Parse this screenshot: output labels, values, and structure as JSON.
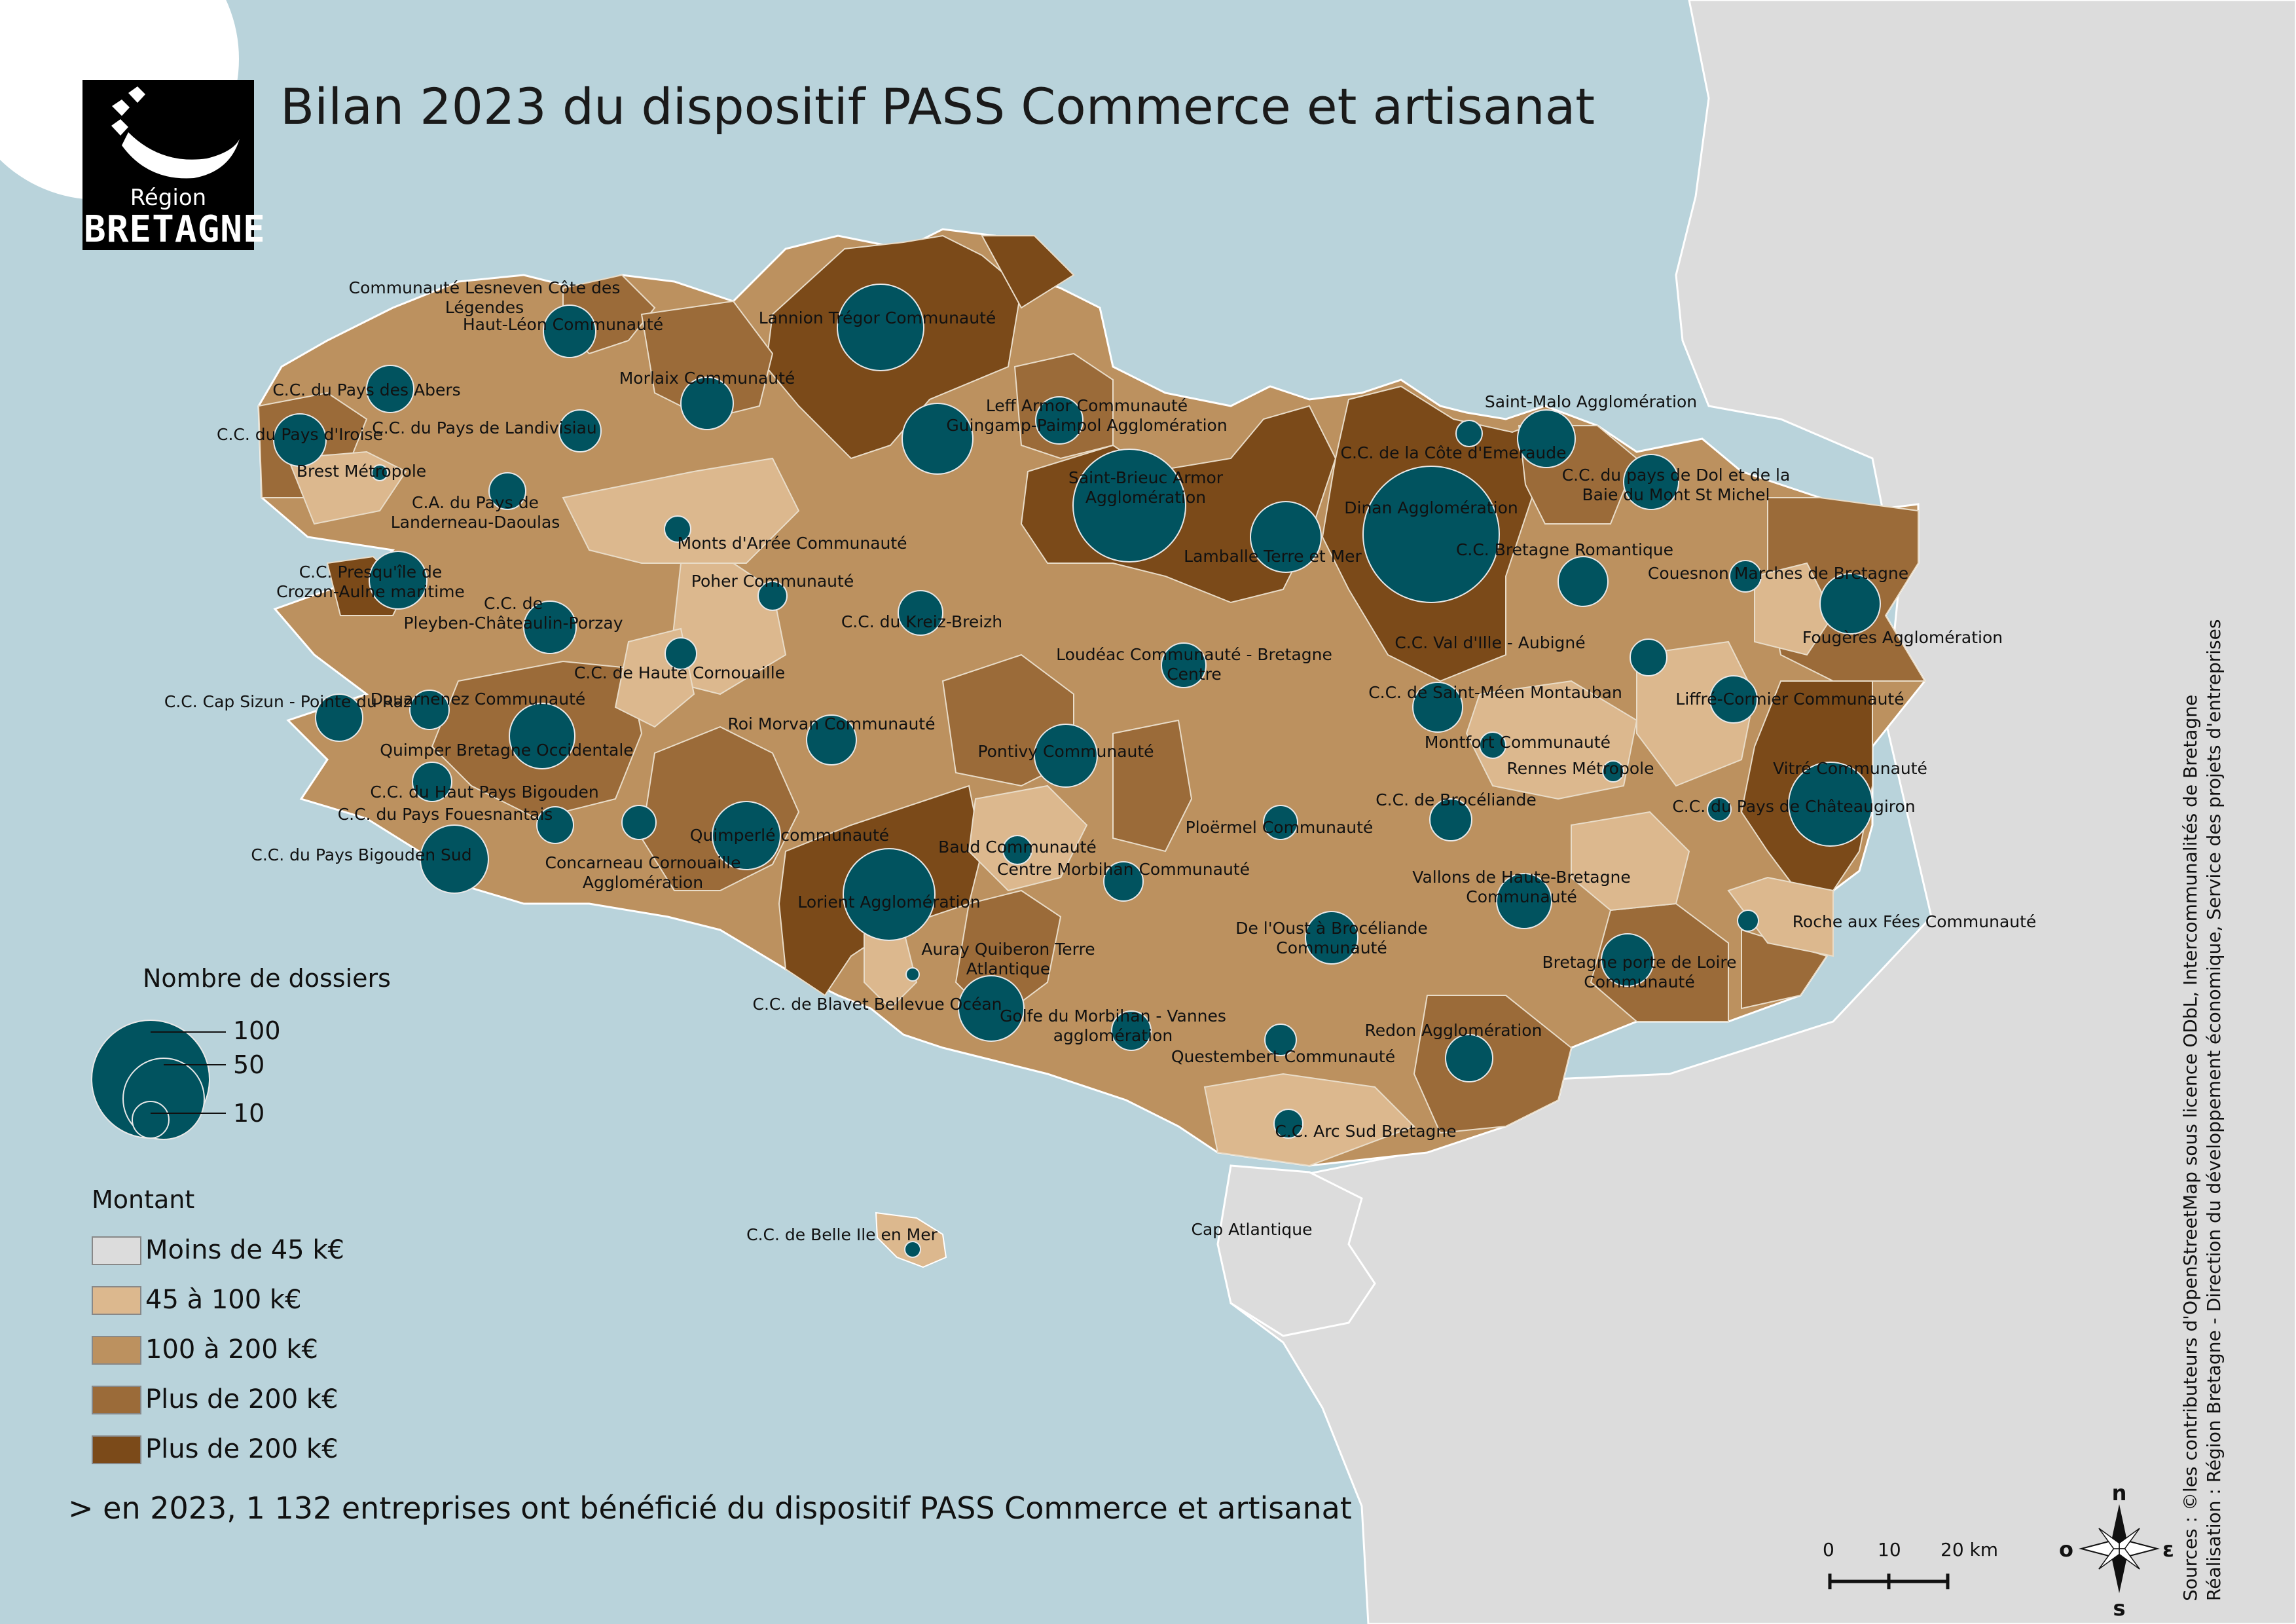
{
  "title": "Bilan 2023 du dispositif PASS Commerce et artisanat",
  "logo": {
    "line1": "Région",
    "line2": "BRETAGNE"
  },
  "legend": {
    "size_title": "Nombre de dossiers",
    "sizes": [
      {
        "label": "100",
        "value": 100
      },
      {
        "label": "50",
        "value": 50
      },
      {
        "label": "10",
        "value": 10
      }
    ],
    "color_title": "Montant",
    "classes": [
      {
        "label": "Moins de 45 k€",
        "color": "#dcdcdc"
      },
      {
        "label": "45 à 100 k€",
        "color": "#dcb88e"
      },
      {
        "label": "100 à 200 k€",
        "color": "#bc915f"
      },
      {
        "label": "Plus de 200 k€",
        "color": "#9b6b39"
      },
      {
        "label": "Plus de 200 k€",
        "color": "#7b4a19"
      }
    ]
  },
  "footer": "> en 2023, 1 132 entreprises ont bénéficié du dispositif PASS Commerce et artisanat",
  "sources": [
    "Sources : ©les contributeurs d'OpenStreetMap sous licence ODbL, Intercommunalités de Bretagne",
    "Réalisation : Région Bretagne - Direction du développement économique, Service des projets d'entreprises"
  ],
  "scale": {
    "ticks": [
      "0",
      "10",
      "20 km"
    ]
  },
  "compass": {
    "n": "n",
    "e": "ε",
    "s": "s",
    "o": "o"
  },
  "places": [
    {
      "name": "Communauté Lesneven Côte des",
      "line2": "Légendes"
    },
    {
      "name": "Haut-Léon Communauté"
    },
    {
      "name": "Lannion Trégor Communauté"
    },
    {
      "name": "C.C. du Pays des Abers"
    },
    {
      "name": "Morlaix Communauté"
    },
    {
      "name": "C.C. du Pays d'Iroise"
    },
    {
      "name": "C.C. du Pays de Landivisiau"
    },
    {
      "name": "Leff Armor Communauté"
    },
    {
      "name": "Guingamp-Paimpol Agglomération"
    },
    {
      "name": "Saint-Malo Agglomération"
    },
    {
      "name": "Brest Métropole"
    },
    {
      "name": "C.C. de la Côte d'Emeraude"
    },
    {
      "name": "C.C. du pays de Dol et de la",
      "line2": "Baie du Mont St Michel"
    },
    {
      "name": "Saint-Brieuc Armor",
      "line2": "Agglomération"
    },
    {
      "name": "C.A. du Pays de",
      "line2": "Landerneau-Daoulas"
    },
    {
      "name": "Dinan Agglomération"
    },
    {
      "name": "Monts d'Arrée Communauté"
    },
    {
      "name": "Lamballe Terre et Mer"
    },
    {
      "name": "C.C. Bretagne Romantique"
    },
    {
      "name": "C.C. Presqu'île de",
      "line2": "Crozon-Aulne maritime"
    },
    {
      "name": "Poher Communauté"
    },
    {
      "name": "Couesnon Marches de Bretagne"
    },
    {
      "name": "C.C. de",
      "line2": "Pleyben-Châteaulin-Porzay"
    },
    {
      "name": "C.C. du Kreiz-Breizh"
    },
    {
      "name": "Fougères Agglomération"
    },
    {
      "name": "C.C. Val d'Ille - Aubigné"
    },
    {
      "name": "Loudéac Communauté - Bretagne",
      "line2": "Centre"
    },
    {
      "name": "C.C. de Haute Cornouaille"
    },
    {
      "name": "C.C. de Saint-Méen Montauban"
    },
    {
      "name": "Liffré-Cormier Communauté"
    },
    {
      "name": "C.C. Cap Sizun - Pointe du Raz"
    },
    {
      "name": "Douarnenez Communauté"
    },
    {
      "name": "Roi Morvan Communauté"
    },
    {
      "name": "Montfort Communauté"
    },
    {
      "name": "Quimper Bretagne Occidentale"
    },
    {
      "name": "Pontivy Communauté"
    },
    {
      "name": "Rennes Métropole"
    },
    {
      "name": "Vitré Communauté"
    },
    {
      "name": "C.C. du Haut Pays Bigouden"
    },
    {
      "name": "C.C. de Brocéliande"
    },
    {
      "name": "C.C. du Pays de Châteaugiron"
    },
    {
      "name": "C.C. du Pays Fouesnantais"
    },
    {
      "name": "Ploërmel Communauté"
    },
    {
      "name": "Quimperlé communauté"
    },
    {
      "name": "Baud Communauté"
    },
    {
      "name": "C.C. du Pays Bigouden Sud"
    },
    {
      "name": "Concarneau Cornouaille",
      "line2": "Agglomération"
    },
    {
      "name": "Centre Morbihan Communauté"
    },
    {
      "name": "Vallons de Haute-Bretagne",
      "line2": "Communauté"
    },
    {
      "name": "Lorient Agglomération"
    },
    {
      "name": "De l'Oust à Brocéliande",
      "line2": "Communauté"
    },
    {
      "name": "Roche aux Fées Communauté"
    },
    {
      "name": "Auray Quiberon Terre",
      "line2": "Atlantique"
    },
    {
      "name": "Bretagne porte de Loire",
      "line2": "Communauté"
    },
    {
      "name": "C.C. de Blavet Bellevue Océan"
    },
    {
      "name": "Golfe du Morbihan - Vannes",
      "line2": "agglomération"
    },
    {
      "name": "Redon Agglomération"
    },
    {
      "name": "Questembert Communauté"
    },
    {
      "name": "C.C. Arc Sud Bretagne"
    },
    {
      "name": "Cap Atlantique"
    },
    {
      "name": "C.C. de Belle Ile en Mer"
    }
  ]
}
